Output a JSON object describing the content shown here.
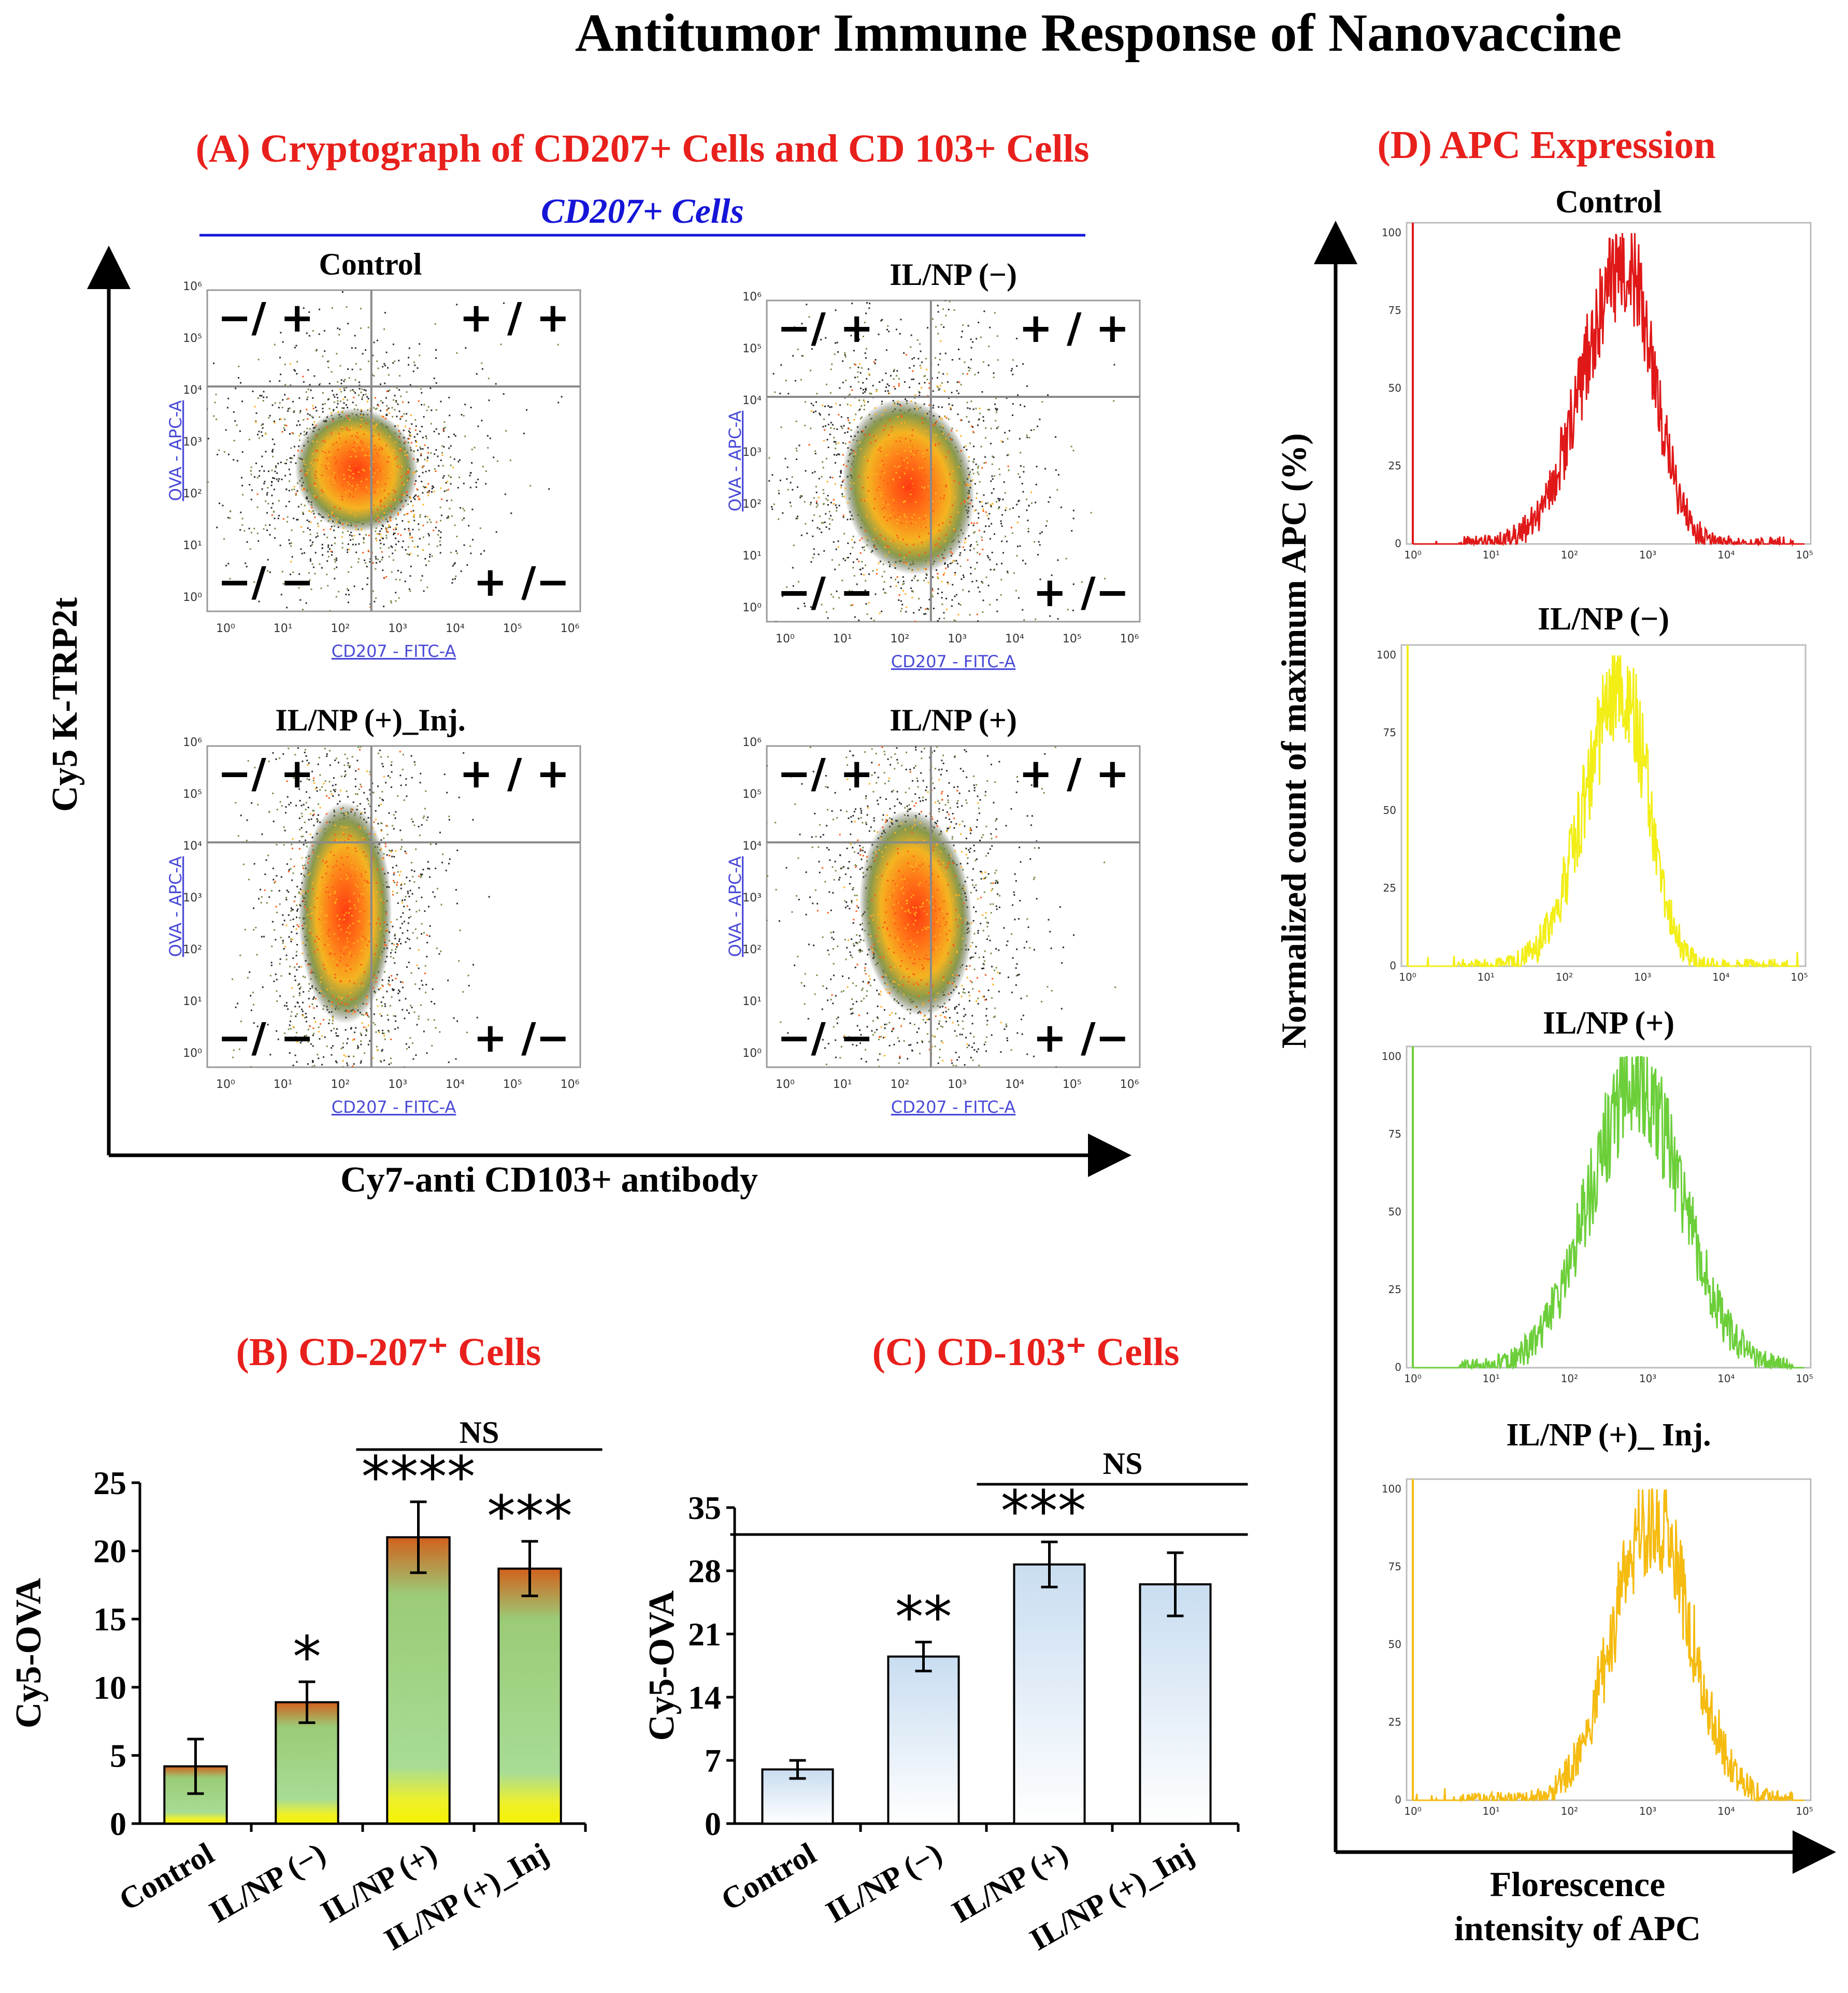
{
  "title": "Antitumor Immune Response of Nanovaccine",
  "colors": {
    "panel_title": "#e8201c",
    "cd207_header": "#1515d8",
    "axis_link": "#4a4ad8",
    "gate_line": "#8a8a8a"
  },
  "panel_a": {
    "title": "(A) Cryptograph of  CD207+ Cells and CD 103+ Cells",
    "header": "CD207+ Cells",
    "y_axis_label": "Cy5 K-TRP2t",
    "x_axis_label": "Cy7-anti CD103+ antibody",
    "plot_x_label": "CD207 - FITC-A",
    "plot_y_label": "OVA - APC-A",
    "tick_labels": [
      "10⁰",
      "10¹",
      "10²",
      "10³",
      "10⁴",
      "10⁵",
      "10⁶"
    ],
    "quadrant_labels": {
      "top_left": "−/ +",
      "top_right": "+ / +",
      "bottom_left": "−/ −",
      "bottom_right": "+ /−"
    },
    "plots": [
      {
        "name": "Control",
        "title": "Control"
      },
      {
        "name": "IL/NP (-)",
        "title": "IL/NP (−)"
      },
      {
        "name": "IL/NP (+)_Inj.",
        "title": "IL/NP (+)_Inj."
      },
      {
        "name": "IL/NP (+)",
        "title": "IL/NP (+)"
      }
    ]
  },
  "panel_d": {
    "title": "(D) APC Expression",
    "y_axis_label": "Normalized count of maximum APC (%)",
    "x_axis_label_line1": "Florescence",
    "x_axis_label_line2": "intensity of APC",
    "y_ticks": [
      "0",
      "25",
      "50",
      "75",
      "100"
    ],
    "x_ticks": [
      "10⁰",
      "10¹",
      "10²",
      "10³",
      "10⁴",
      "10⁵"
    ],
    "histograms": [
      {
        "title": "Control",
        "color": "#e01818"
      },
      {
        "title": "IL/NP (−)",
        "color": "#f2ee16"
      },
      {
        "title": "IL/NP (+)",
        "color": "#6ccf3a"
      },
      {
        "title": "IL/NP (+)_ Inj.",
        "color": "#f5bb10"
      }
    ]
  },
  "chart_data": [
    {
      "type": "bar",
      "title": "(B) CD-207⁺ Cells",
      "ylabel": "Cy5-OVA",
      "xlabel": "",
      "ylim": [
        0,
        25
      ],
      "yticks": [
        0,
        5,
        10,
        15,
        20,
        25
      ],
      "categories": [
        "Control",
        "IL/NP (−)",
        "IL/NP (+)",
        "IL/NP (+)_Inj"
      ],
      "values": [
        4.2,
        8.9,
        21.0,
        18.7
      ],
      "errors": [
        2.0,
        1.5,
        2.6,
        2.0
      ],
      "significance": [
        "",
        "*",
        "****",
        "***"
      ],
      "comparison": {
        "label": "NS",
        "from": "IL/NP (+)",
        "to": "IL/NP (+)_Inj"
      }
    },
    {
      "type": "bar",
      "title": "(C) CD-103⁺ Cells",
      "ylabel": "Cy5-OVA",
      "xlabel": "",
      "ylim": [
        0,
        35
      ],
      "yticks": [
        0,
        7,
        14,
        21,
        28,
        35
      ],
      "categories": [
        "Control",
        "IL/NP (−)",
        "IL/NP (+)",
        "IL/NP (+)_Inj"
      ],
      "values": [
        6.0,
        18.5,
        28.7,
        26.5
      ],
      "errors": [
        1.0,
        1.6,
        2.5,
        3.5
      ],
      "significance": [
        "",
        "**",
        "",
        ""
      ],
      "comparisons": [
        {
          "label": "NS",
          "from": "IL/NP (+)",
          "to": "IL/NP (+)_Inj"
        },
        {
          "label": "***",
          "from": "Control",
          "to": "IL/NP (+)_Inj"
        }
      ]
    }
  ]
}
